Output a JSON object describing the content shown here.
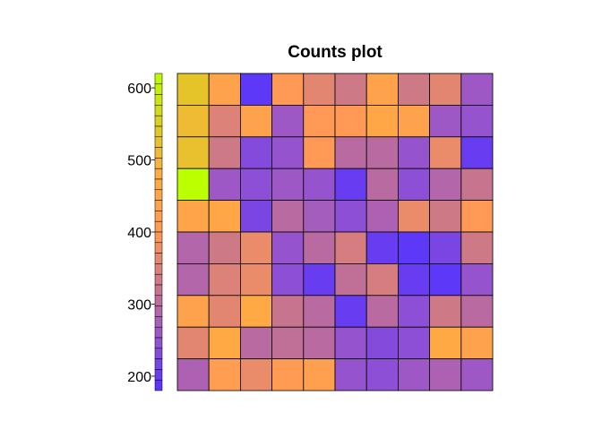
{
  "chart_data": {
    "type": "heatmap",
    "title": "Counts plot",
    "rows": 10,
    "cols": 10,
    "values": [
      [
        530,
        440,
        190,
        400,
        360,
        330,
        440,
        330,
        360,
        260
      ],
      [
        510,
        350,
        440,
        260,
        400,
        400,
        460,
        440,
        260,
        250
      ],
      [
        520,
        330,
        230,
        250,
        400,
        300,
        300,
        250,
        370,
        200
      ],
      [
        620,
        260,
        240,
        260,
        250,
        200,
        300,
        240,
        290,
        320
      ],
      [
        450,
        460,
        220,
        300,
        270,
        240,
        280,
        370,
        330,
        400
      ],
      [
        290,
        330,
        370,
        250,
        300,
        340,
        200,
        190,
        220,
        330
      ],
      [
        290,
        350,
        370,
        240,
        200,
        310,
        340,
        200,
        190,
        250
      ],
      [
        440,
        360,
        470,
        320,
        300,
        200,
        300,
        240,
        330,
        300
      ],
      [
        360,
        470,
        300,
        310,
        300,
        250,
        230,
        240,
        470,
        440
      ],
      [
        280,
        420,
        370,
        410,
        430,
        250,
        240,
        260,
        280,
        260
      ]
    ],
    "scale": {
      "min": 180,
      "max": 620,
      "ticks": [
        200,
        300,
        400,
        500,
        600
      ],
      "colors": [
        "#5533ff",
        "#9955cc",
        "#cc7788",
        "#ff9955",
        "#ffaa44",
        "#ddcc22",
        "#bbff00"
      ]
    },
    "grid": true,
    "legend_position": "left"
  }
}
